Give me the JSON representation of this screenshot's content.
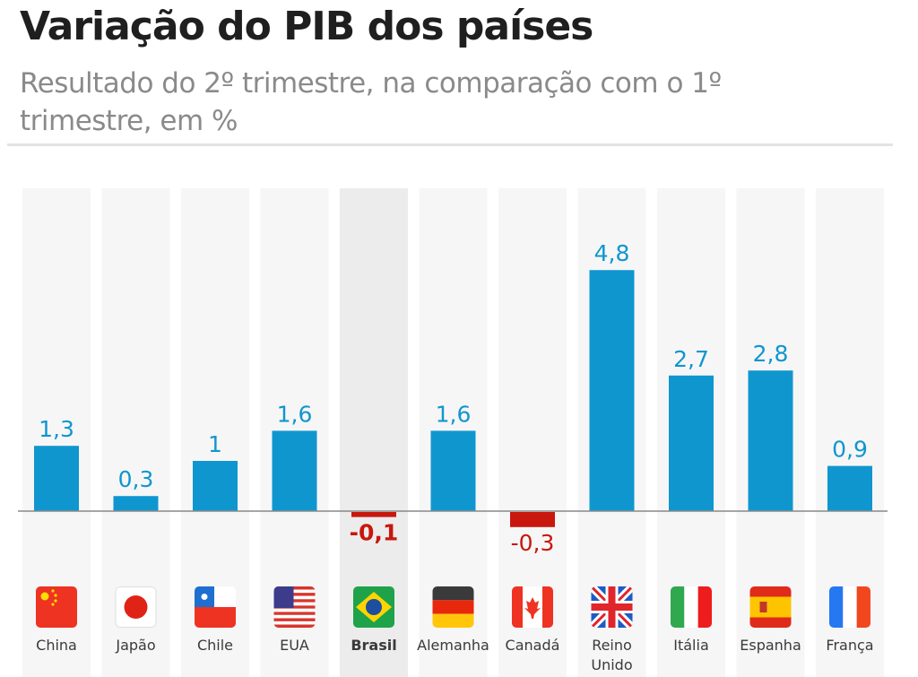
{
  "header": {
    "title": "Variação do PIB dos países",
    "subtitle": "Resultado do 2º trimestre, na comparação com o 1º trimestre, em %"
  },
  "colors": {
    "positive": "#1096cf",
    "negative": "#c8170d",
    "highlight_column": "#ececec",
    "column": "#f6f6f7",
    "baseline": "#888888"
  },
  "chart_data": {
    "type": "bar",
    "title": "Variação do PIB dos países",
    "subtitle": "Resultado do 2º trimestre, na comparação com o 1º trimestre, em %",
    "xlabel": "",
    "ylabel": "",
    "ylim": [
      -0.5,
      6.1
    ],
    "grid": false,
    "legend": "none",
    "highlight": "Brasil",
    "categories": [
      "China",
      "Japão",
      "Chile",
      "EUA",
      "Brasil",
      "Alemanha",
      "Canadá",
      "Reino Unido",
      "Itália",
      "Espanha",
      "França"
    ],
    "category_lines": [
      [
        "China"
      ],
      [
        "Japão"
      ],
      [
        "Chile"
      ],
      [
        "EUA"
      ],
      [
        "Brasil"
      ],
      [
        "Alemanha"
      ],
      [
        "Canadá"
      ],
      [
        "Reino",
        "Unido"
      ],
      [
        "Itália"
      ],
      [
        "Espanha"
      ],
      [
        "França"
      ]
    ],
    "flags": [
      "china-flag",
      "japan-flag",
      "chile-flag",
      "usa-flag",
      "brazil-flag",
      "germany-flag",
      "canada-flag",
      "uk-flag",
      "italy-flag",
      "spain-flag",
      "france-flag"
    ],
    "values": [
      1.3,
      0.3,
      1.0,
      1.6,
      -0.1,
      1.6,
      -0.3,
      4.8,
      2.7,
      2.8,
      0.9
    ],
    "value_labels": [
      "1,3",
      "0,3",
      "1",
      "1,6",
      "-0,1",
      "1,6",
      "-0,3",
      "4,8",
      "2,7",
      "2,8",
      "0,9"
    ]
  }
}
